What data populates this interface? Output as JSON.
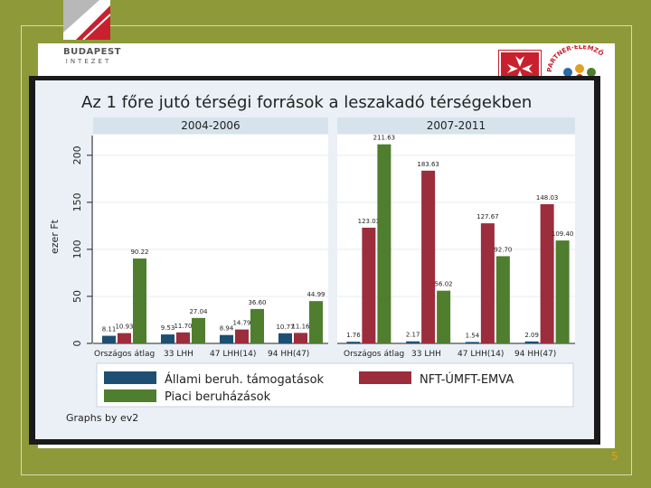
{
  "header": {
    "logo_line1": "BUDAPEST",
    "logo_line2": "INTEZET",
    "partner_logo_text": "PARTNER·ELEMZŐ"
  },
  "page_number": "5",
  "colors": {
    "background": "#8e9a3a",
    "panel": "#eaf0f6",
    "allami": "#1d4f73",
    "nft": "#9b2d3c",
    "piaci": "#4f7e2e"
  },
  "icons": [
    "budapest-intezet-logo-icon",
    "malta-cross-logo-icon",
    "partner-elemzo-logo-icon"
  ],
  "chart_data": {
    "type": "bar",
    "title": "Az 1 főre jutó térségi források a leszakadó térségekben",
    "ylabel": "ezer Ft",
    "ylim": [
      0,
      220
    ],
    "yticks": [
      0,
      50,
      100,
      150,
      200
    ],
    "categories": [
      "Országos átlag",
      "33 LHH",
      "47 LHH(14)",
      "94 HH(47)"
    ],
    "panels": [
      {
        "label": "2004-2006",
        "series": [
          {
            "name": "Állami beruh. támogatások",
            "values": [
              8.11,
              9.53,
              8.94,
              10.77
            ]
          },
          {
            "name": "NFT-ÚMFT-EMVA",
            "values": [
              10.93,
              11.7,
              14.79,
              11.16
            ]
          },
          {
            "name": "Piaci beruházások",
            "values": [
              90.22,
              27.04,
              36.6,
              44.99
            ]
          }
        ]
      },
      {
        "label": "2007-2011",
        "series": [
          {
            "name": "Állami beruh. támogatások",
            "values": [
              1.76,
              2.17,
              1.54,
              2.09
            ]
          },
          {
            "name": "NFT-ÚMFT-EMVA",
            "values": [
              123.03,
              183.63,
              127.67,
              148.03
            ]
          },
          {
            "name": "Piaci beruházások",
            "values": [
              211.63,
              56.02,
              92.7,
              109.4
            ]
          }
        ]
      }
    ],
    "legend": [
      "Állami beruh. támogatások",
      "NFT-ÚMFT-EMVA",
      "Piaci beruházások"
    ],
    "legend_position": "bottom",
    "note": "Graphs by ev2",
    "grid": true
  }
}
